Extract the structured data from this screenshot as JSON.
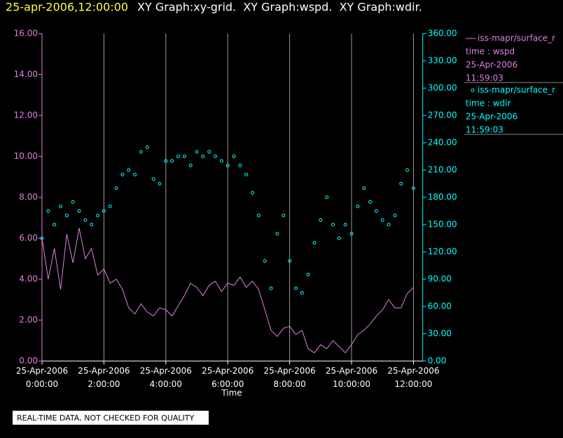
{
  "chart_data": {
    "type": "xy",
    "header_date": "25-apr-2006,12:00:00",
    "title": "XY Graph:xy-grid.  XY Graph:wspd.  XY Graph:wdir.",
    "xlabel": "Time",
    "footer": "REAL-TIME DATA, NOT CHECKED FOR QUALITY",
    "grid": true,
    "xlim": [
      0,
      12.3
    ],
    "xticks": [
      {
        "value": 0,
        "label": "25-Apr-2006 0:00:00"
      },
      {
        "value": 2,
        "label": "25-Apr-2006 2:00:00"
      },
      {
        "value": 4,
        "label": "25-Apr-2006 4:00:00"
      },
      {
        "value": 6,
        "label": "25-Apr-2006 6:00:00"
      },
      {
        "value": 8,
        "label": "25-Apr-2006 8:00:00"
      },
      {
        "value": 10,
        "label": "25-Apr-2006 10:00:00"
      },
      {
        "value": 12,
        "label": "25-Apr-2006 12:00:00"
      }
    ],
    "ylim": [
      0,
      16
    ],
    "yticks": [
      {
        "value": 0,
        "label": "0.00"
      },
      {
        "value": 2,
        "label": "2.00"
      },
      {
        "value": 4,
        "label": "4.00"
      },
      {
        "value": 6,
        "label": "6.00"
      },
      {
        "value": 8,
        "label": "8.00"
      },
      {
        "value": 10,
        "label": "10.00"
      },
      {
        "value": 12,
        "label": "12.00"
      },
      {
        "value": 14,
        "label": "14.00"
      },
      {
        "value": 16,
        "label": "16.00"
      }
    ],
    "y2lim": [
      0,
      360
    ],
    "y2ticks": [
      {
        "value": 0,
        "label": "0.00"
      },
      {
        "value": 30,
        "label": "30.00"
      },
      {
        "value": 60,
        "label": "60.00"
      },
      {
        "value": 90,
        "label": "90.00"
      },
      {
        "value": 120,
        "label": "120.00"
      },
      {
        "value": 150,
        "label": "150.00"
      },
      {
        "value": 180,
        "label": "180.00"
      },
      {
        "value": 210,
        "label": "210.00"
      },
      {
        "value": 240,
        "label": "240.00"
      },
      {
        "value": 270,
        "label": "270.00"
      },
      {
        "value": 300,
        "label": "300.00"
      },
      {
        "value": 330,
        "label": "330.00"
      },
      {
        "value": 360,
        "label": "360.00"
      }
    ],
    "x": [
      0,
      0.2,
      0.4,
      0.6,
      0.8,
      1,
      1.2,
      1.4,
      1.6,
      1.8,
      2,
      2.2,
      2.4,
      2.6,
      2.8,
      3,
      3.2,
      3.4,
      3.6,
      3.8,
      4,
      4.2,
      4.4,
      4.6,
      4.8,
      5,
      5.2,
      5.4,
      5.6,
      5.8,
      6,
      6.2,
      6.4,
      6.6,
      6.8,
      7,
      7.2,
      7.4,
      7.6,
      7.8,
      8,
      8.2,
      8.4,
      8.6,
      8.8,
      9,
      9.2,
      9.4,
      9.6,
      9.8,
      10,
      10.2,
      10.4,
      10.6,
      10.8,
      11,
      11.2,
      11.4,
      11.6,
      11.8,
      12
    ],
    "series": [
      {
        "name": "iss-mapr/surface_r",
        "label_lines": [
          "time : wspd",
          "25-Apr-2006",
          "11:59:03"
        ],
        "color": "#e080e0",
        "mark": "line",
        "values": [
          6.0,
          4.0,
          5.5,
          3.5,
          6.2,
          4.8,
          6.5,
          5.0,
          5.5,
          4.2,
          4.5,
          3.8,
          4.0,
          3.5,
          2.6,
          2.3,
          2.8,
          2.4,
          2.2,
          2.6,
          2.5,
          2.2,
          2.7,
          3.2,
          3.8,
          3.6,
          3.2,
          3.7,
          3.9,
          3.4,
          3.8,
          3.7,
          4.1,
          3.6,
          3.9,
          3.5,
          2.5,
          1.5,
          1.2,
          1.6,
          1.7,
          1.3,
          1.5,
          0.6,
          0.4,
          0.8,
          0.6,
          1.0,
          0.7,
          0.4,
          0.8,
          1.3,
          1.5,
          1.8,
          2.2,
          2.5,
          3.0,
          2.6,
          2.6,
          3.3,
          3.6
        ]
      },
      {
        "name": "iss-mapr/surface_r",
        "label_lines": [
          "time : wdir",
          "25-Apr-2006",
          "11:59:03"
        ],
        "color": "#00ffff",
        "mark": "circle",
        "axis": "y2",
        "values": [
          135,
          165,
          150,
          170,
          160,
          175,
          165,
          155,
          150,
          160,
          165,
          170,
          190,
          205,
          210,
          205,
          230,
          235,
          200,
          195,
          220,
          220,
          225,
          225,
          215,
          230,
          225,
          230,
          225,
          220,
          215,
          225,
          215,
          205,
          185,
          160,
          110,
          80,
          140,
          160,
          110,
          80,
          75,
          95,
          130,
          155,
          180,
          150,
          135,
          150,
          140,
          170,
          190,
          175,
          165,
          155,
          150,
          160,
          195,
          210,
          190
        ]
      }
    ]
  }
}
